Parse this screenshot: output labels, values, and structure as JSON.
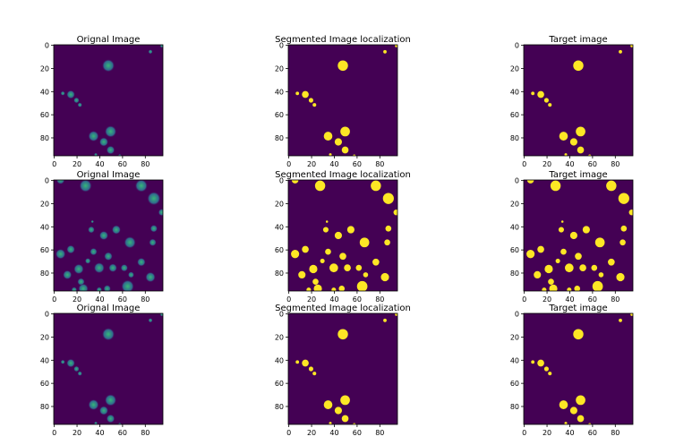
{
  "figure": {
    "rows": 3,
    "cols": 3,
    "axis_ticks": [
      "0",
      "20",
      "40",
      "60",
      "80"
    ],
    "tick_values": [
      0,
      20,
      40,
      60,
      80
    ],
    "image_extent": 96,
    "colormap": "viridis",
    "colors": {
      "background_original": "#440154",
      "background_binary": "#440154",
      "foreground_binary": "#fde725",
      "cell_bright": "#35b779",
      "cell_dim": "#31688e"
    },
    "panels": [
      {
        "title": "Orignal Image",
        "kind": "original",
        "dataset": 0
      },
      {
        "title": "Segmented Image localization",
        "kind": "segmented",
        "dataset": 0
      },
      {
        "title": "Target image",
        "kind": "target",
        "dataset": 0
      },
      {
        "title": "Orignal Image",
        "kind": "original",
        "dataset": 1
      },
      {
        "title": "Segmented Image localization",
        "kind": "segmented",
        "dataset": 1
      },
      {
        "title": "Target image",
        "kind": "target",
        "dataset": 1
      },
      {
        "title": "Orignal Image",
        "kind": "original",
        "dataset": 0
      },
      {
        "title": "Segmented Image localization",
        "kind": "segmented",
        "dataset": 0
      },
      {
        "title": "Target image",
        "kind": "target",
        "dataset": 0
      }
    ],
    "datasets": [
      [
        {
          "x": 48,
          "y": 18,
          "r": 4.5
        },
        {
          "x": 85,
          "y": 6,
          "r": 1.5
        },
        {
          "x": 95,
          "y": 1,
          "r": 1.2
        },
        {
          "x": 8,
          "y": 42,
          "r": 1.5
        },
        {
          "x": 15,
          "y": 43,
          "r": 3
        },
        {
          "x": 20,
          "y": 48,
          "r": 2
        },
        {
          "x": 23,
          "y": 52,
          "r": 1.6
        },
        {
          "x": 35,
          "y": 79,
          "r": 3.8
        },
        {
          "x": 50,
          "y": 75,
          "r": 4.2
        },
        {
          "x": 44,
          "y": 84,
          "r": 3.2
        },
        {
          "x": 50,
          "y": 91,
          "r": 3
        },
        {
          "x": 37,
          "y": 95,
          "r": 1.2
        },
        {
          "x": 58,
          "y": 96,
          "r": 1.2
        }
      ],
      [
        {
          "x": 6,
          "y": 0,
          "r": 3
        },
        {
          "x": 28,
          "y": 5,
          "r": 4.5
        },
        {
          "x": 77,
          "y": 5,
          "r": 4.5
        },
        {
          "x": 88,
          "y": 16,
          "r": 4.8
        },
        {
          "x": 95,
          "y": 28,
          "r": 2.5
        },
        {
          "x": 34,
          "y": 36,
          "r": 1
        },
        {
          "x": 33,
          "y": 43,
          "r": 2.4
        },
        {
          "x": 55,
          "y": 43,
          "r": 3.2
        },
        {
          "x": 44,
          "y": 48,
          "r": 3.2
        },
        {
          "x": 88,
          "y": 42,
          "r": 2.6
        },
        {
          "x": 67,
          "y": 54,
          "r": 4.2
        },
        {
          "x": 15,
          "y": 60,
          "r": 3
        },
        {
          "x": 35,
          "y": 62,
          "r": 2.6
        },
        {
          "x": 87,
          "y": 54,
          "r": 2.6
        },
        {
          "x": 6,
          "y": 64,
          "r": 3.6
        },
        {
          "x": 48,
          "y": 66,
          "r": 3
        },
        {
          "x": 30,
          "y": 70,
          "r": 2
        },
        {
          "x": 77,
          "y": 71,
          "r": 3
        },
        {
          "x": 22,
          "y": 77,
          "r": 3.6
        },
        {
          "x": 40,
          "y": 76,
          "r": 3.8
        },
        {
          "x": 52,
          "y": 76,
          "r": 3
        },
        {
          "x": 62,
          "y": 76,
          "r": 2.6
        },
        {
          "x": 12,
          "y": 82,
          "r": 3.2
        },
        {
          "x": 68,
          "y": 82,
          "r": 2.2
        },
        {
          "x": 85,
          "y": 84,
          "r": 3.6
        },
        {
          "x": 24,
          "y": 88,
          "r": 2.6
        },
        {
          "x": 26,
          "y": 94,
          "r": 3.6
        },
        {
          "x": 47,
          "y": 94,
          "r": 2.6
        },
        {
          "x": 65,
          "y": 92,
          "r": 4.6
        },
        {
          "x": 18,
          "y": 95,
          "r": 2
        },
        {
          "x": 40,
          "y": 95,
          "r": 2
        }
      ]
    ]
  }
}
